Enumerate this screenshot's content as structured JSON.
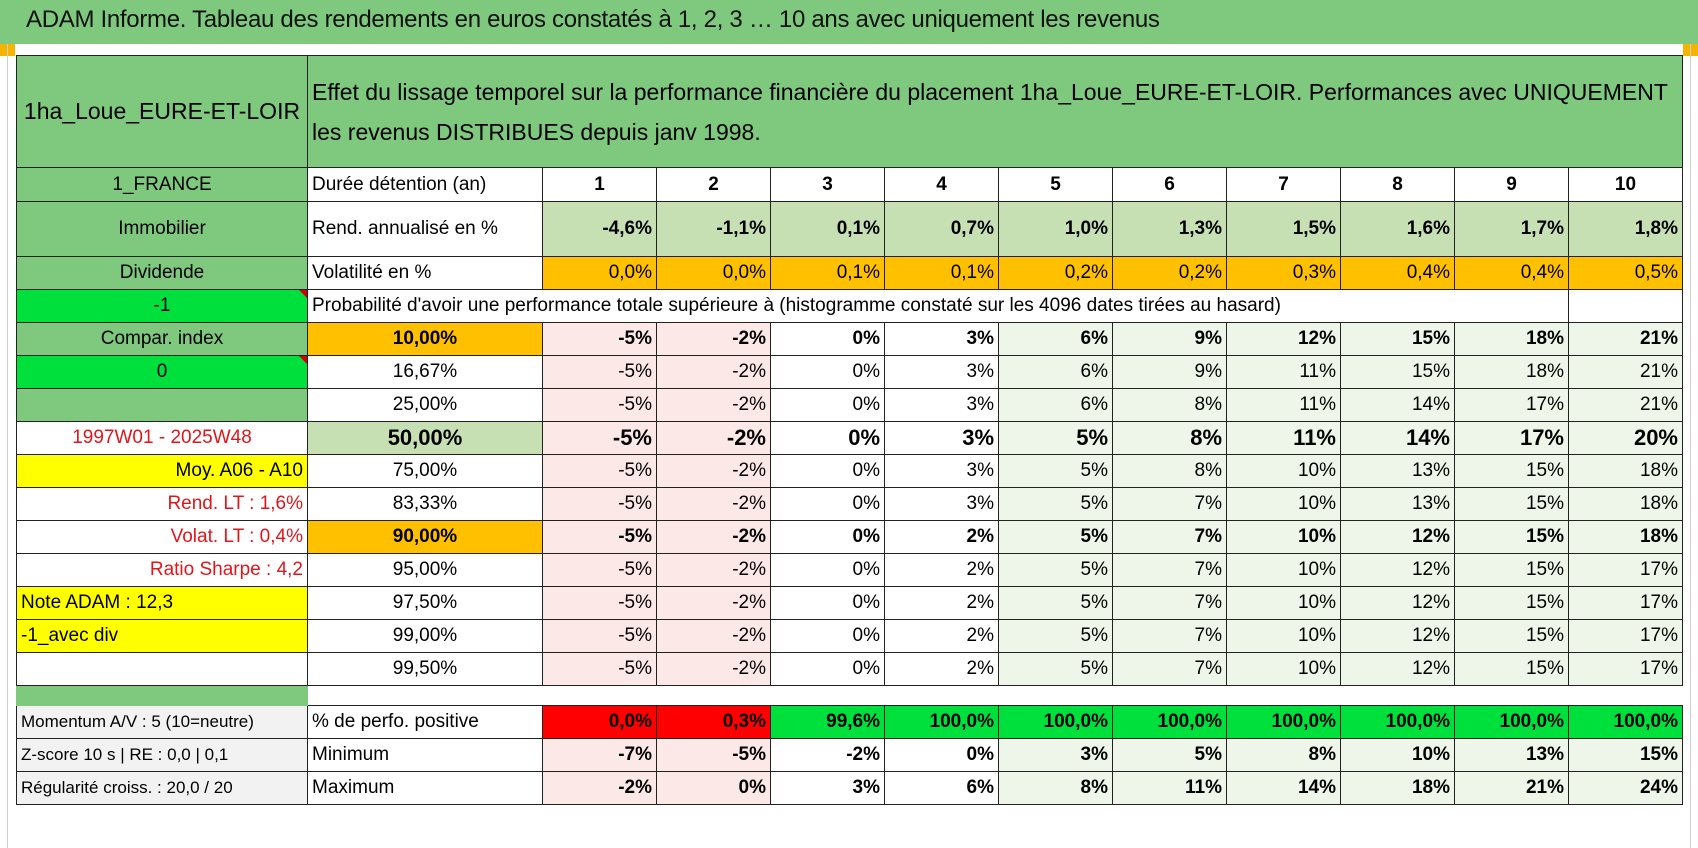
{
  "title": "ADAM Informe. Tableau des rendements en euros constatés à 1, 2, 3 … 10 ans avec uniquement les revenus",
  "header": {
    "fund_name": "1ha_Loue_EURE-ET-LOIR",
    "description_line1": "Effet du lissage temporel sur la performance financière du placement 1ha_Loue_EURE-ET-LOIR. Performances avec UNIQUEMENT",
    "description_line2": "les revenus DISTRIBUES depuis janv 1998."
  },
  "side": {
    "country": "1_FRANCE",
    "asset_class": "Immobilier",
    "mode": "Dividende",
    "selector_a": "-1",
    "compar_index": "Compar. index",
    "selector_b": "0",
    "empty": "",
    "period": "1997W01 - 2025W48",
    "moy": "Moy. A06 - A10",
    "rend_lt": "Rend. LT :    1,6%",
    "volat_lt": "Volat. LT :    0,4%",
    "sharpe": "Ratio Sharpe :     4,2",
    "note": "Note ADAM : 12,3",
    "variant": "-1_avec div",
    "momentum": "Momentum A/V : 5 (10=neutre)",
    "zscore": "Z-score 10 s | RE : 0,0 | 0,1",
    "regularite": "Régularité croiss. : 20,0 / 20"
  },
  "labels": {
    "duree": "Durée détention (an)",
    "rend": "Rend. annualisé en %",
    "vol": "Volatilité en %",
    "proba": "Probabilité d'avoir une performance totale supérieure à (histogramme constaté sur les 4096 dates tirées au hasard)",
    "positive": "% de perfo. positive",
    "minimum": "Minimum",
    "maximum": "Maximum"
  },
  "years": [
    "1",
    "2",
    "3",
    "4",
    "5",
    "6",
    "7",
    "8",
    "9",
    "10"
  ],
  "rend": [
    "-4,6%",
    "-1,1%",
    "0,1%",
    "0,7%",
    "1,0%",
    "1,3%",
    "1,5%",
    "1,6%",
    "1,7%",
    "1,8%"
  ],
  "vol": [
    "0,0%",
    "0,0%",
    "0,1%",
    "0,1%",
    "0,2%",
    "0,2%",
    "0,3%",
    "0,4%",
    "0,4%",
    "0,5%"
  ],
  "percentiles": [
    {
      "p": "10,00%",
      "v": [
        "-5%",
        "-2%",
        "0%",
        "3%",
        "6%",
        "9%",
        "12%",
        "15%",
        "18%",
        "21%"
      ]
    },
    {
      "p": "16,67%",
      "v": [
        "-5%",
        "-2%",
        "0%",
        "3%",
        "6%",
        "9%",
        "11%",
        "15%",
        "18%",
        "21%"
      ]
    },
    {
      "p": "25,00%",
      "v": [
        "-5%",
        "-2%",
        "0%",
        "3%",
        "6%",
        "8%",
        "11%",
        "14%",
        "17%",
        "21%"
      ]
    },
    {
      "p": "50,00%",
      "v": [
        "-5%",
        "-2%",
        "0%",
        "3%",
        "5%",
        "8%",
        "11%",
        "14%",
        "17%",
        "20%"
      ]
    },
    {
      "p": "75,00%",
      "v": [
        "-5%",
        "-2%",
        "0%",
        "3%",
        "5%",
        "8%",
        "10%",
        "13%",
        "15%",
        "18%"
      ]
    },
    {
      "p": "83,33%",
      "v": [
        "-5%",
        "-2%",
        "0%",
        "3%",
        "5%",
        "7%",
        "10%",
        "13%",
        "15%",
        "18%"
      ]
    },
    {
      "p": "90,00%",
      "v": [
        "-5%",
        "-2%",
        "0%",
        "2%",
        "5%",
        "7%",
        "10%",
        "12%",
        "15%",
        "18%"
      ]
    },
    {
      "p": "95,00%",
      "v": [
        "-5%",
        "-2%",
        "0%",
        "2%",
        "5%",
        "7%",
        "10%",
        "12%",
        "15%",
        "17%"
      ]
    },
    {
      "p": "97,50%",
      "v": [
        "-5%",
        "-2%",
        "0%",
        "2%",
        "5%",
        "7%",
        "10%",
        "12%",
        "15%",
        "17%"
      ]
    },
    {
      "p": "99,00%",
      "v": [
        "-5%",
        "-2%",
        "0%",
        "2%",
        "5%",
        "7%",
        "10%",
        "12%",
        "15%",
        "17%"
      ]
    },
    {
      "p": "99,50%",
      "v": [
        "-5%",
        "-2%",
        "0%",
        "2%",
        "5%",
        "7%",
        "10%",
        "12%",
        "15%",
        "17%"
      ]
    }
  ],
  "positive": [
    "0,0%",
    "0,3%",
    "99,6%",
    "100,0%",
    "100,0%",
    "100,0%",
    "100,0%",
    "100,0%",
    "100,0%",
    "100,0%"
  ],
  "minimum": [
    "-7%",
    "-5%",
    "-2%",
    "0%",
    "3%",
    "5%",
    "8%",
    "10%",
    "13%",
    "15%"
  ],
  "maximum": [
    "-2%",
    "0%",
    "3%",
    "6%",
    "8%",
    "11%",
    "14%",
    "18%",
    "21%",
    "24%"
  ],
  "colors": {
    "header_green": "#7ec97e",
    "light_green": "#c6e0b4",
    "orange": "#ffc000",
    "bright_green": "#00e03c",
    "red": "#ff0000",
    "yellow": "#ffff00",
    "red_text": "#e0161b"
  }
}
